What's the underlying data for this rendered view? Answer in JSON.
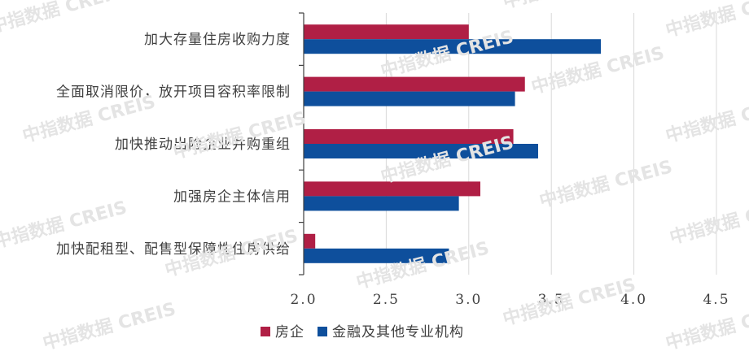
{
  "chart_data": {
    "type": "bar",
    "orientation": "horizontal",
    "categories": [
      "加大存量住房收购力度",
      "全面取消限价，放开项目容积率限制",
      "加快推动出险企业并购重组",
      "加强房企主体信用",
      "加快配租型、配售型保障性住房供给"
    ],
    "series": [
      {
        "name": "房企",
        "color": "#b01f45",
        "values": [
          3.0,
          3.34,
          3.27,
          3.07,
          2.07
        ]
      },
      {
        "name": "金融及其他专业机构",
        "color": "#0e4f9c",
        "values": [
          3.8,
          3.28,
          3.42,
          2.94,
          2.88
        ]
      }
    ],
    "xlim": [
      2.0,
      4.5
    ],
    "xticks": [
      "2.0",
      "2.5",
      "3.0",
      "3.5",
      "4.0",
      "4.5"
    ],
    "grid": "vertical",
    "legend_position": "bottom-center",
    "watermark_text": "中指数据 CREIS"
  }
}
